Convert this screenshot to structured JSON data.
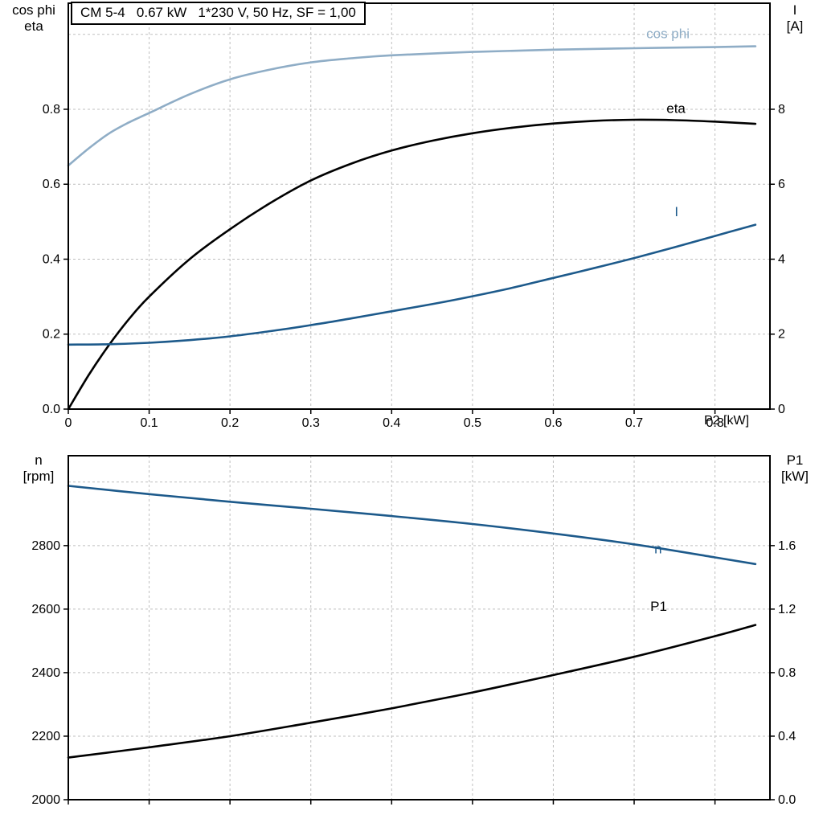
{
  "title_box": "CM 5-4   0.67 kW   1*230 V, 50 Hz, SF = 1,00",
  "colors": {
    "black": "#000000",
    "dark_blue": "#1d5a8b",
    "light_blue": "#8fadc6",
    "grid": "#bfbfbf",
    "frame": "#000000"
  },
  "axis_corner_labels": {
    "top_left": [
      "cos phi",
      "eta"
    ],
    "top_right": [
      "I",
      "[A]"
    ],
    "bottom_left": [
      "n",
      "[rpm]"
    ],
    "bottom_right": [
      "P1",
      "[kW]"
    ],
    "x_label": "P2 [kW]"
  },
  "chart_data": [
    {
      "type": "line",
      "title": "CM 5-4   0.67 kW   1*230 V, 50 Hz, SF = 1,00",
      "xlabel": "P2 [kW]",
      "xlim": [
        0,
        0.868
      ],
      "x_axis": {
        "tick_values": [
          0,
          0.1,
          0.2,
          0.3,
          0.4,
          0.5,
          0.6,
          0.7,
          0.8
        ],
        "tick_labels": [
          "0",
          "0.1",
          "0.2",
          "0.3",
          "0.4",
          "0.5",
          "0.6",
          "0.7",
          "0.8"
        ]
      },
      "left_axis": {
        "label": "cos phi / eta",
        "lim": [
          0,
          1.083
        ],
        "tick_values": [
          0,
          0.2,
          0.4,
          0.6,
          0.8
        ],
        "tick_labels": [
          "0.0",
          "0.2",
          "0.4",
          "0.6",
          "0.8"
        ]
      },
      "right_axis": {
        "label": "I [A]",
        "lim": [
          0,
          10.83
        ],
        "tick_values": [
          0,
          2,
          4,
          6,
          8
        ],
        "tick_labels": [
          "0",
          "2",
          "4",
          "6",
          "8"
        ]
      },
      "grid": {
        "x": [
          0.1,
          0.2,
          0.3,
          0.4,
          0.5,
          0.6,
          0.7,
          0.8
        ],
        "y_left": [
          0.2,
          0.4,
          0.6,
          0.8,
          1.0
        ]
      },
      "series": [
        {
          "name": "cos phi",
          "axis": "left",
          "color": "light_blue",
          "x": [
            0,
            0.025,
            0.05,
            0.075,
            0.1,
            0.15,
            0.2,
            0.25,
            0.3,
            0.35,
            0.4,
            0.5,
            0.6,
            0.7,
            0.8,
            0.85
          ],
          "y": [
            0.65,
            0.695,
            0.735,
            0.765,
            0.79,
            0.84,
            0.88,
            0.906,
            0.925,
            0.936,
            0.944,
            0.953,
            0.959,
            0.963,
            0.966,
            0.968
          ],
          "label_at": [
            0.715,
            0.99
          ]
        },
        {
          "name": "eta",
          "axis": "left",
          "color": "black",
          "x": [
            0,
            0.025,
            0.05,
            0.075,
            0.1,
            0.15,
            0.2,
            0.25,
            0.3,
            0.35,
            0.4,
            0.45,
            0.5,
            0.55,
            0.6,
            0.65,
            0.7,
            0.75,
            0.8,
            0.85
          ],
          "y": [
            0,
            0.09,
            0.17,
            0.24,
            0.3,
            0.4,
            0.48,
            0.55,
            0.61,
            0.655,
            0.69,
            0.716,
            0.736,
            0.751,
            0.762,
            0.769,
            0.772,
            0.771,
            0.767,
            0.761
          ],
          "label_at": [
            0.74,
            0.79
          ]
        },
        {
          "name": "I",
          "axis": "right",
          "color": "dark_blue",
          "x": [
            0,
            0.05,
            0.1,
            0.15,
            0.2,
            0.25,
            0.3,
            0.35,
            0.4,
            0.45,
            0.5,
            0.55,
            0.6,
            0.65,
            0.7,
            0.75,
            0.8,
            0.85
          ],
          "y": [
            1.72,
            1.73,
            1.77,
            1.84,
            1.94,
            2.08,
            2.24,
            2.42,
            2.61,
            2.8,
            3.01,
            3.24,
            3.5,
            3.76,
            4.03,
            4.32,
            4.62,
            4.92
          ],
          "label_at": [
            0.75,
            5.15
          ]
        }
      ]
    },
    {
      "type": "line",
      "xlim": [
        0,
        0.868
      ],
      "x_axis": {
        "tick_values": [
          0,
          0.1,
          0.2,
          0.3,
          0.4,
          0.5,
          0.6,
          0.7,
          0.8
        ],
        "tick_labels": [
          "",
          "",
          "",
          "",
          "",
          "",
          "",
          "",
          ""
        ]
      },
      "left_axis": {
        "label": "n [rpm]",
        "lim": [
          2000,
          3083
        ],
        "tick_values": [
          2000,
          2200,
          2400,
          2600,
          2800
        ],
        "tick_labels": [
          "2000",
          "2200",
          "2400",
          "2600",
          "2800"
        ]
      },
      "right_axis": {
        "label": "P1 [kW]",
        "lim": [
          0,
          2.166
        ],
        "tick_values": [
          0,
          0.4,
          0.8,
          1.2,
          1.6
        ],
        "tick_labels": [
          "0.0",
          "0.4",
          "0.8",
          "1.2",
          "1.6"
        ]
      },
      "grid": {
        "x": [
          0.1,
          0.2,
          0.3,
          0.4,
          0.5,
          0.6,
          0.7,
          0.8
        ],
        "y_left": [
          2200,
          2400,
          2600,
          2800,
          3000
        ]
      },
      "series": [
        {
          "name": "n",
          "axis": "left",
          "color": "dark_blue",
          "x": [
            0,
            0.1,
            0.2,
            0.3,
            0.4,
            0.5,
            0.6,
            0.7,
            0.8,
            0.85
          ],
          "y": [
            2988,
            2962,
            2938,
            2916,
            2893,
            2868,
            2838,
            2804,
            2763,
            2742
          ],
          "label_at": [
            0.725,
            2775
          ]
        },
        {
          "name": "P1",
          "axis": "left2right",
          "color": "black",
          "x": [
            0,
            0.1,
            0.2,
            0.3,
            0.4,
            0.5,
            0.6,
            0.7,
            0.8,
            0.85
          ],
          "y": [
            0.265,
            0.33,
            0.4,
            0.485,
            0.575,
            0.675,
            0.785,
            0.9,
            1.03,
            1.1
          ],
          "label_at": [
            0.72,
            1.19
          ]
        }
      ]
    }
  ]
}
